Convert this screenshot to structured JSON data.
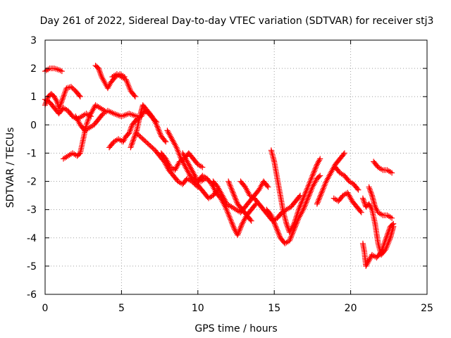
{
  "chart_data": {
    "type": "scatter",
    "title": "Day 261 of 2022, Sidereal Day-to-day VTEC variation (SDTVAR) for receiver stj3",
    "xlabel": "GPS time / hours",
    "ylabel": "SDTVAR / TECUs",
    "xlim": [
      0,
      25
    ],
    "ylim": [
      -6,
      3
    ],
    "xticks": [
      0,
      5,
      10,
      15,
      20,
      25
    ],
    "yticks": [
      3,
      2,
      1,
      0,
      -1,
      -2,
      -3,
      -4,
      -5,
      -6
    ],
    "grid": true,
    "marker": "+",
    "color": "#ff0000",
    "series": [
      {
        "name": "s1",
        "points": [
          [
            0,
            1.9
          ],
          [
            0.3,
            2.0
          ],
          [
            0.6,
            2.0
          ],
          [
            0.9,
            1.95
          ],
          [
            1.1,
            1.9
          ]
        ]
      },
      {
        "name": "s2",
        "points": [
          [
            0,
            0.7
          ],
          [
            0.2,
            1.0
          ],
          [
            0.4,
            1.1
          ],
          [
            0.6,
            1.0
          ],
          [
            0.8,
            0.8
          ],
          [
            0.9,
            0.6
          ],
          [
            1.0,
            0.7
          ],
          [
            1.2,
            1.0
          ],
          [
            1.4,
            1.3
          ],
          [
            1.7,
            1.35
          ],
          [
            2.0,
            1.2
          ],
          [
            2.3,
            1.0
          ]
        ]
      },
      {
        "name": "s3",
        "points": [
          [
            0,
            0.9
          ],
          [
            0.3,
            0.8
          ],
          [
            0.6,
            0.6
          ],
          [
            0.9,
            0.4
          ],
          [
            1.2,
            0.6
          ],
          [
            1.5,
            0.5
          ],
          [
            1.8,
            0.3
          ],
          [
            2.1,
            0.2
          ],
          [
            2.4,
            0.3
          ],
          [
            2.7,
            0.4
          ],
          [
            3.0,
            0.3
          ]
        ]
      },
      {
        "name": "s4",
        "points": [
          [
            1.2,
            -1.2
          ],
          [
            1.5,
            -1.1
          ],
          [
            1.8,
            -1.0
          ],
          [
            2.1,
            -1.1
          ],
          [
            2.3,
            -1.0
          ],
          [
            2.5,
            -0.5
          ],
          [
            2.7,
            0
          ],
          [
            2.9,
            0.3
          ],
          [
            3.1,
            0.5
          ],
          [
            3.3,
            0.7
          ],
          [
            3.6,
            0.6
          ],
          [
            3.9,
            0.5
          ]
        ]
      },
      {
        "name": "s5",
        "points": [
          [
            2.0,
            0.3
          ],
          [
            2.3,
            0
          ],
          [
            2.6,
            -0.2
          ],
          [
            2.9,
            -0.1
          ],
          [
            3.2,
            0
          ],
          [
            3.5,
            0.2
          ],
          [
            3.8,
            0.4
          ],
          [
            4.1,
            0.5
          ],
          [
            4.5,
            0.4
          ],
          [
            5.0,
            0.3
          ],
          [
            5.5,
            0.4
          ],
          [
            6.0,
            0.3
          ]
        ]
      },
      {
        "name": "s6",
        "points": [
          [
            3.3,
            2.1
          ],
          [
            3.5,
            2.0
          ],
          [
            3.7,
            1.7
          ],
          [
            3.9,
            1.5
          ],
          [
            4.1,
            1.3
          ],
          [
            4.3,
            1.5
          ],
          [
            4.6,
            1.7
          ],
          [
            4.9,
            1.8
          ],
          [
            5.2,
            1.7
          ]
        ]
      },
      {
        "name": "s7",
        "points": [
          [
            4.4,
            1.7
          ],
          [
            4.7,
            1.8
          ],
          [
            5.0,
            1.7
          ],
          [
            5.3,
            1.6
          ],
          [
            5.6,
            1.2
          ],
          [
            5.9,
            1.0
          ]
        ]
      },
      {
        "name": "s8",
        "points": [
          [
            4.2,
            -0.8
          ],
          [
            4.5,
            -0.6
          ],
          [
            4.8,
            -0.5
          ],
          [
            5.1,
            -0.6
          ],
          [
            5.3,
            -0.4
          ],
          [
            5.5,
            -0.3
          ],
          [
            5.7,
            0
          ],
          [
            6.0,
            0.2
          ],
          [
            6.3,
            0.3
          ],
          [
            6.5,
            0.5
          ],
          [
            6.8,
            0.4
          ],
          [
            7.1,
            0.2
          ],
          [
            7.3,
            0.1
          ]
        ]
      },
      {
        "name": "s9",
        "points": [
          [
            5.6,
            -0.8
          ],
          [
            5.8,
            -0.5
          ],
          [
            6.0,
            -0.2
          ],
          [
            6.2,
            0.3
          ],
          [
            6.4,
            0.7
          ],
          [
            6.7,
            0.5
          ],
          [
            7.0,
            0.3
          ],
          [
            7.3,
            0
          ],
          [
            7.6,
            -0.4
          ],
          [
            7.9,
            -0.6
          ]
        ]
      },
      {
        "name": "s10",
        "points": [
          [
            6.0,
            -0.3
          ],
          [
            6.4,
            -0.5
          ],
          [
            6.8,
            -0.7
          ],
          [
            7.2,
            -0.9
          ],
          [
            7.5,
            -1.1
          ],
          [
            7.8,
            -1.3
          ],
          [
            8.1,
            -1.6
          ],
          [
            8.4,
            -1.8
          ],
          [
            8.7,
            -2.0
          ],
          [
            9.0,
            -2.1
          ],
          [
            9.3,
            -1.9
          ],
          [
            9.6,
            -2.0
          ],
          [
            10.0,
            -2.2
          ]
        ]
      },
      {
        "name": "s11",
        "points": [
          [
            7.6,
            -1.0
          ],
          [
            7.9,
            -1.2
          ],
          [
            8.2,
            -1.5
          ],
          [
            8.5,
            -1.6
          ],
          [
            8.8,
            -1.3
          ],
          [
            9.1,
            -1.2
          ],
          [
            9.4,
            -1.0
          ],
          [
            9.7,
            -1.2
          ],
          [
            10.0,
            -1.4
          ],
          [
            10.3,
            -1.5
          ]
        ]
      },
      {
        "name": "s12",
        "points": [
          [
            8.0,
            -0.2
          ],
          [
            8.3,
            -0.5
          ],
          [
            8.6,
            -0.8
          ],
          [
            8.9,
            -1.2
          ],
          [
            9.2,
            -1.5
          ],
          [
            9.5,
            -1.8
          ],
          [
            9.8,
            -2.0
          ],
          [
            10.1,
            -2.2
          ],
          [
            10.4,
            -2.4
          ],
          [
            10.7,
            -2.6
          ],
          [
            11.0,
            -2.5
          ],
          [
            11.3,
            -2.3
          ]
        ]
      },
      {
        "name": "s13",
        "points": [
          [
            10.0,
            -2.0
          ],
          [
            10.3,
            -1.8
          ],
          [
            10.6,
            -1.9
          ],
          [
            10.9,
            -2.1
          ],
          [
            11.2,
            -2.4
          ],
          [
            11.5,
            -2.6
          ],
          [
            11.8,
            -2.9
          ],
          [
            12.1,
            -3.3
          ],
          [
            12.4,
            -3.7
          ],
          [
            12.6,
            -3.9
          ],
          [
            12.9,
            -3.5
          ],
          [
            13.2,
            -3.2
          ],
          [
            13.5,
            -3.0
          ],
          [
            13.8,
            -2.8
          ]
        ]
      },
      {
        "name": "s14",
        "points": [
          [
            11.0,
            -2.0
          ],
          [
            11.3,
            -2.2
          ],
          [
            11.6,
            -2.5
          ],
          [
            11.9,
            -2.8
          ],
          [
            12.2,
            -2.9
          ],
          [
            12.5,
            -3.0
          ],
          [
            12.8,
            -3.1
          ],
          [
            13.1,
            -2.9
          ],
          [
            13.4,
            -2.7
          ],
          [
            13.7,
            -2.5
          ],
          [
            14.0,
            -2.3
          ],
          [
            14.3,
            -2.0
          ],
          [
            14.6,
            -2.2
          ]
        ]
      },
      {
        "name": "s15",
        "points": [
          [
            12.8,
            -2.0
          ],
          [
            13.1,
            -2.2
          ],
          [
            13.4,
            -2.5
          ],
          [
            13.7,
            -2.6
          ],
          [
            14.0,
            -2.8
          ],
          [
            14.3,
            -3.0
          ],
          [
            14.6,
            -3.2
          ],
          [
            14.9,
            -3.4
          ],
          [
            15.2,
            -3.3
          ],
          [
            15.5,
            -3.1
          ],
          [
            15.8,
            -3.0
          ],
          [
            16.1,
            -2.9
          ],
          [
            16.4,
            -2.7
          ],
          [
            16.7,
            -2.5
          ]
        ]
      },
      {
        "name": "s16",
        "points": [
          [
            14.5,
            -3.0
          ],
          [
            14.8,
            -3.2
          ],
          [
            15.1,
            -3.6
          ],
          [
            15.4,
            -4.0
          ],
          [
            15.7,
            -4.2
          ],
          [
            16.0,
            -4.1
          ],
          [
            16.3,
            -3.7
          ],
          [
            16.6,
            -3.3
          ],
          [
            16.9,
            -3.0
          ],
          [
            17.2,
            -2.6
          ],
          [
            17.5,
            -2.2
          ],
          [
            17.8,
            -1.9
          ],
          [
            18.0,
            -1.8
          ]
        ]
      },
      {
        "name": "s17",
        "points": [
          [
            14.8,
            -0.9
          ],
          [
            15.0,
            -1.3
          ],
          [
            15.2,
            -1.9
          ],
          [
            15.4,
            -2.5
          ],
          [
            15.6,
            -3.1
          ],
          [
            15.8,
            -3.5
          ],
          [
            16.0,
            -3.8
          ],
          [
            16.3,
            -3.5
          ],
          [
            16.6,
            -3.0
          ],
          [
            16.9,
            -2.6
          ],
          [
            17.2,
            -2.2
          ],
          [
            17.5,
            -1.8
          ],
          [
            17.8,
            -1.4
          ],
          [
            18.0,
            -1.2
          ]
        ]
      },
      {
        "name": "s18",
        "points": [
          [
            17.8,
            -2.8
          ],
          [
            18.1,
            -2.4
          ],
          [
            18.4,
            -2.0
          ],
          [
            18.7,
            -1.7
          ],
          [
            19.0,
            -1.4
          ],
          [
            19.3,
            -1.2
          ],
          [
            19.6,
            -1.0
          ]
        ]
      },
      {
        "name": "s19",
        "points": [
          [
            18.9,
            -2.6
          ],
          [
            19.2,
            -2.7
          ],
          [
            19.5,
            -2.5
          ],
          [
            19.8,
            -2.4
          ],
          [
            20.1,
            -2.7
          ],
          [
            20.4,
            -2.9
          ],
          [
            20.7,
            -3.1
          ]
        ]
      },
      {
        "name": "s20",
        "points": [
          [
            19.0,
            -1.5
          ],
          [
            19.3,
            -1.7
          ],
          [
            19.6,
            -1.8
          ],
          [
            19.9,
            -2.0
          ],
          [
            20.2,
            -2.1
          ],
          [
            20.5,
            -2.3
          ]
        ]
      },
      {
        "name": "s21",
        "points": [
          [
            21.5,
            -1.3
          ],
          [
            21.8,
            -1.5
          ],
          [
            22.1,
            -1.6
          ],
          [
            22.4,
            -1.6
          ],
          [
            22.7,
            -1.7
          ]
        ]
      },
      {
        "name": "s22",
        "points": [
          [
            21.2,
            -2.2
          ],
          [
            21.4,
            -2.5
          ],
          [
            21.6,
            -2.9
          ],
          [
            21.8,
            -3.1
          ],
          [
            22.1,
            -3.2
          ],
          [
            22.4,
            -3.2
          ],
          [
            22.7,
            -3.3
          ]
        ]
      },
      {
        "name": "s23",
        "points": [
          [
            20.8,
            -4.2
          ],
          [
            20.9,
            -4.5
          ],
          [
            21.0,
            -5.0
          ],
          [
            21.2,
            -4.8
          ],
          [
            21.4,
            -4.6
          ],
          [
            21.7,
            -4.7
          ],
          [
            22.0,
            -4.5
          ],
          [
            22.2,
            -4.2
          ],
          [
            22.4,
            -3.9
          ],
          [
            22.6,
            -3.6
          ],
          [
            22.8,
            -3.5
          ]
        ]
      },
      {
        "name": "s24",
        "points": [
          [
            20.8,
            -2.6
          ],
          [
            21.0,
            -2.9
          ],
          [
            21.2,
            -2.8
          ],
          [
            21.4,
            -3.0
          ],
          [
            21.6,
            -3.5
          ],
          [
            21.8,
            -4.2
          ],
          [
            22.0,
            -4.6
          ],
          [
            22.3,
            -4.4
          ],
          [
            22.6,
            -4.0
          ],
          [
            22.8,
            -3.6
          ]
        ]
      },
      {
        "name": "s25",
        "points": [
          [
            12.0,
            -2.0
          ],
          [
            12.3,
            -2.4
          ],
          [
            12.6,
            -2.8
          ],
          [
            12.9,
            -3.0
          ],
          [
            13.2,
            -3.2
          ],
          [
            13.5,
            -3.4
          ]
        ]
      },
      {
        "name": "s26",
        "points": [
          [
            9.0,
            -1.0
          ],
          [
            9.3,
            -1.3
          ],
          [
            9.6,
            -1.6
          ],
          [
            9.9,
            -1.9
          ],
          [
            10.2,
            -2.0
          ],
          [
            10.5,
            -1.9
          ]
        ]
      }
    ]
  }
}
